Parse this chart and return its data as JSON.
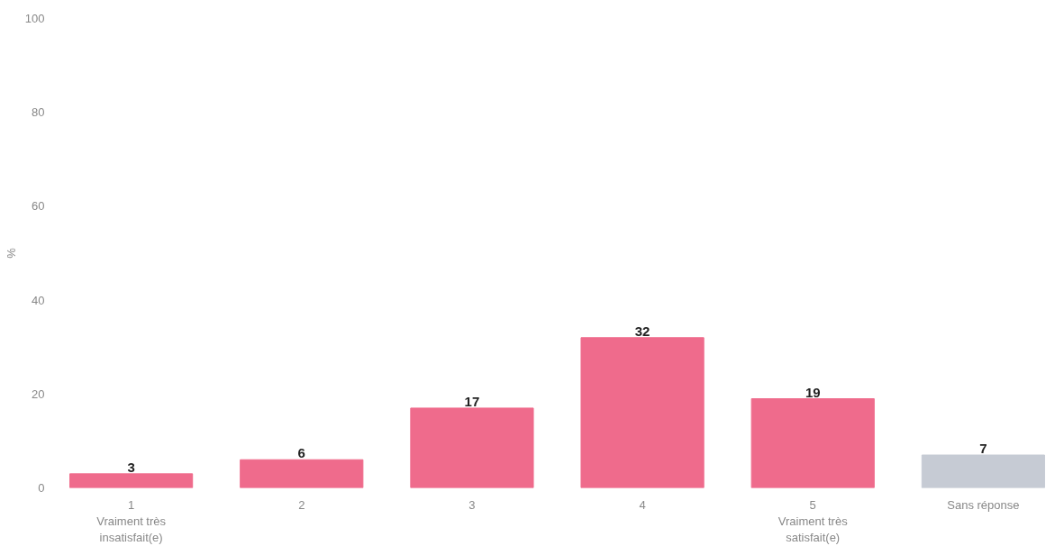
{
  "chart_data": {
    "type": "bar",
    "ylabel": "%",
    "categories": [
      "1\nVraiment très\ninsatisfait(e)",
      "2",
      "3",
      "4",
      "5\nVraiment très\nsatisfait(e)",
      "Sans réponse"
    ],
    "values": [
      3,
      6,
      17,
      32,
      19,
      7
    ],
    "colors": [
      "#ef6b8c",
      "#ef6b8c",
      "#ef6b8c",
      "#ef6b8c",
      "#ef6b8c",
      "#c6cbd4"
    ],
    "ylim": [
      0,
      100
    ],
    "yticks": [
      0,
      20,
      40,
      60,
      80,
      100
    ],
    "data_labels": true,
    "grid": false
  }
}
